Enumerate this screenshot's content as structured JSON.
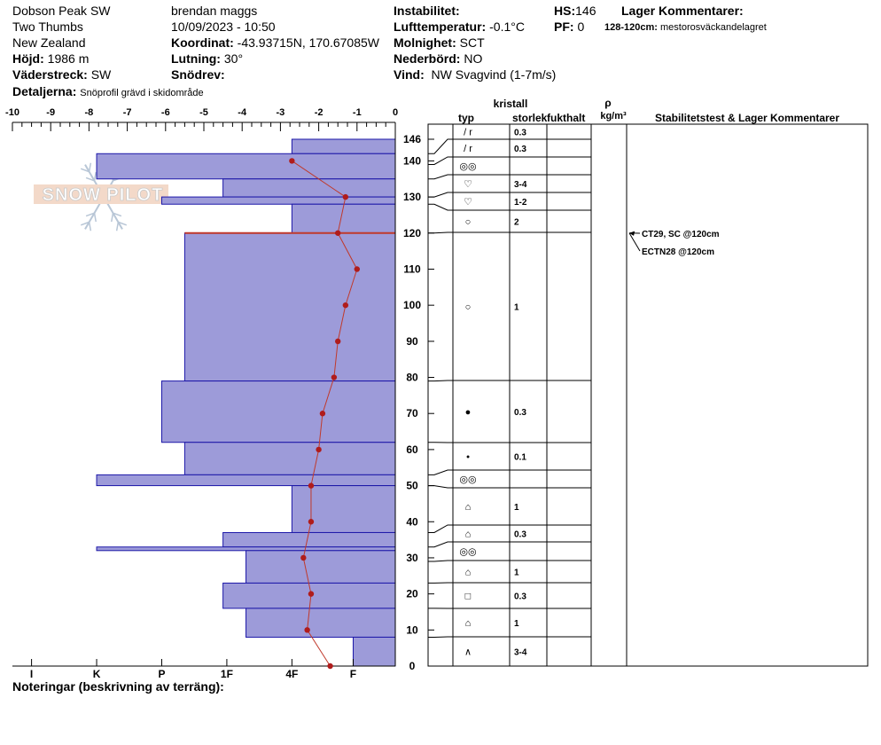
{
  "header": {
    "location": "Dobson Peak SW",
    "area": "Two Thumbs",
    "country": "New Zealand",
    "elevation_label": "Höjd:",
    "elevation": "1986 m",
    "aspect_label": "Väderstreck:",
    "aspect": "SW",
    "details_label": "Detaljerna:",
    "details": "Snöprofil grävd i skidområde",
    "observer": "brendan maggs",
    "datetime": "10/09/2023 - 10:50",
    "coord_label": "Koordinat:",
    "coord": "-43.93715N, 170.67085W",
    "slope_label": "Lutning:",
    "slope": "30°",
    "drift_label": "Snödrev:",
    "drift": "",
    "instability_label": "Instabilitet:",
    "instability": "",
    "airtemp_label": "Lufttemperatur:",
    "airtemp": "-0.1°C",
    "sky_label": "Molnighet:",
    "sky": "SCT",
    "precip_label": "Nederbörd:",
    "precip": "NO",
    "wind_label": "Vind:",
    "wind": "NW Svagvind (1-7m/s)",
    "hs_label": "HS:",
    "hs": "146",
    "pf_label": "PF:",
    "pf": "0",
    "layer_comments_label": "Lager Kommentarer:",
    "layer_comment_range": "128-120cm:",
    "layer_comment_text": "mestorosväckandelagret"
  },
  "notes_label": "Noteringar (beskrivning av terräng):",
  "watermark": "SNOW PILOT",
  "grid_headers": {
    "crystal": "kristall",
    "type": "typ",
    "size": "storlek",
    "moisture": "fukthalt",
    "rho": "ρ",
    "density_unit": "kg/m³",
    "stability": "Stabilitetstest & Lager Kommentarer"
  },
  "chart_data": {
    "type": "snow-profile",
    "temperature_axis": {
      "min": -10,
      "max": 0,
      "ticks": [
        "-10",
        "-9",
        "-8",
        "-7",
        "-6",
        "-5",
        "-4",
        "-3",
        "-2",
        "-1",
        "0"
      ]
    },
    "height_axis": {
      "min": 0,
      "max": 146,
      "ticks": [
        0,
        10,
        20,
        30,
        40,
        50,
        60,
        70,
        80,
        90,
        100,
        110,
        120,
        130,
        140,
        146
      ]
    },
    "hardness_ticks": [
      {
        "label": "I",
        "temp": -9.5
      },
      {
        "label": "K",
        "temp": -7.8
      },
      {
        "label": "P",
        "temp": -6.1
      },
      {
        "label": "1F",
        "temp": -4.4
      },
      {
        "label": "4F",
        "temp": -2.7
      },
      {
        "label": "F",
        "temp": -1.1
      }
    ],
    "hardness_layers": [
      {
        "bottom": 142,
        "top": 146,
        "hard": -2.7
      },
      {
        "bottom": 135,
        "top": 142,
        "hard": -7.8
      },
      {
        "bottom": 130,
        "top": 135,
        "hard": -4.5
      },
      {
        "bottom": 128,
        "top": 130,
        "hard": -6.1
      },
      {
        "bottom": 120,
        "top": 128,
        "hard": -2.7
      },
      {
        "bottom": 79,
        "top": 120,
        "hard": -5.5
      },
      {
        "bottom": 62,
        "top": 79,
        "hard": -6.1
      },
      {
        "bottom": 53,
        "top": 62,
        "hard": -5.5
      },
      {
        "bottom": 50,
        "top": 53,
        "hard": -7.8
      },
      {
        "bottom": 37,
        "top": 50,
        "hard": -2.7
      },
      {
        "bottom": 33,
        "top": 37,
        "hard": -4.5
      },
      {
        "bottom": 32,
        "top": 33,
        "hard": -7.8
      },
      {
        "bottom": 23,
        "top": 32,
        "hard": -3.9
      },
      {
        "bottom": 16,
        "top": 23,
        "hard": -4.5
      },
      {
        "bottom": 8,
        "top": 16,
        "hard": -3.9
      },
      {
        "bottom": 0,
        "top": 8,
        "hard": -1.1
      }
    ],
    "weak_layer_height": 120,
    "temperature_profile": [
      {
        "h": 0,
        "t": -1.7
      },
      {
        "h": 10,
        "t": -2.3
      },
      {
        "h": 20,
        "t": -2.2
      },
      {
        "h": 30,
        "t": -2.4
      },
      {
        "h": 40,
        "t": -2.2
      },
      {
        "h": 50,
        "t": -2.2
      },
      {
        "h": 60,
        "t": -2.0
      },
      {
        "h": 70,
        "t": -1.9
      },
      {
        "h": 80,
        "t": -1.6
      },
      {
        "h": 90,
        "t": -1.5
      },
      {
        "h": 100,
        "t": -1.3
      },
      {
        "h": 110,
        "t": -1.0
      },
      {
        "h": 120,
        "t": -1.5
      },
      {
        "h": 130,
        "t": -1.3
      },
      {
        "h": 140,
        "t": -2.7
      }
    ],
    "grid_layers": [
      {
        "bottom": 142,
        "top": 146,
        "type": "/ r",
        "size": "0.3"
      },
      {
        "bottom": 139,
        "top": 142,
        "type": "/ r",
        "size": "0.3"
      },
      {
        "bottom": 135,
        "top": 139,
        "type": "◎◎",
        "size": ""
      },
      {
        "bottom": 130,
        "top": 135,
        "type": "♡",
        "size": "3-4"
      },
      {
        "bottom": 128,
        "top": 130,
        "type": "♡",
        "size": "1-2"
      },
      {
        "bottom": 120,
        "top": 128,
        "type": "○",
        "size": "2"
      },
      {
        "bottom": 79,
        "top": 120,
        "type": "○",
        "size": "1"
      },
      {
        "bottom": 62,
        "top": 79,
        "type": "●",
        "size": "0.3"
      },
      {
        "bottom": 53,
        "top": 62,
        "type": "•",
        "size": "0.1"
      },
      {
        "bottom": 50,
        "top": 53,
        "type": "◎◎",
        "size": ""
      },
      {
        "bottom": 37,
        "top": 50,
        "type": "⌂",
        "size": "1"
      },
      {
        "bottom": 33,
        "top": 37,
        "type": "⌂",
        "size": "0.3"
      },
      {
        "bottom": 29,
        "top": 33,
        "type": "◎◎",
        "size": ""
      },
      {
        "bottom": 23,
        "top": 29,
        "type": "⌂",
        "size": "1"
      },
      {
        "bottom": 16,
        "top": 23,
        "type": "□",
        "size": "0.3"
      },
      {
        "bottom": 8,
        "top": 16,
        "type": "⌂",
        "size": "1"
      },
      {
        "bottom": 0,
        "top": 8,
        "type": "∧",
        "size": "3-4"
      }
    ],
    "stability_tests": [
      {
        "label": "CT29, SC @120cm",
        "height": 120
      },
      {
        "label": "ECTN28 @120cm",
        "height": 120
      }
    ]
  }
}
